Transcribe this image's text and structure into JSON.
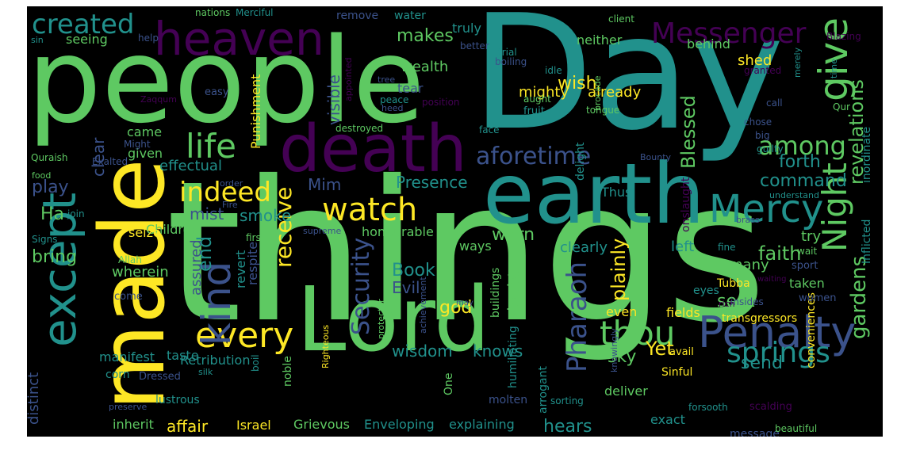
{
  "palette": [
    "#fde725",
    "#5ec962",
    "#21918c",
    "#3b528b",
    "#440154"
  ],
  "words": [
    {
      "text": "things",
      "c": 1
    },
    {
      "text": "Day",
      "c": 2
    },
    {
      "text": "people",
      "c": 1
    },
    {
      "text": "made",
      "c": 0
    },
    {
      "text": "Lord",
      "c": 1
    },
    {
      "text": "earth",
      "c": 2
    },
    {
      "text": "death",
      "c": 4
    },
    {
      "text": "heaven",
      "c": 4
    },
    {
      "text": "except",
      "c": 2
    },
    {
      "text": "Penalty",
      "c": 3
    },
    {
      "text": "give",
      "c": 1
    },
    {
      "text": "Night",
      "c": 1
    },
    {
      "text": "Messenger",
      "c": 4
    },
    {
      "text": "Mercy",
      "c": 2
    },
    {
      "text": "watch",
      "c": 0
    },
    {
      "text": "thou",
      "c": 1
    },
    {
      "text": "every",
      "c": 0
    },
    {
      "text": "kind",
      "c": 3
    },
    {
      "text": "life",
      "c": 1
    },
    {
      "text": "created",
      "c": 2
    },
    {
      "text": "indeed",
      "c": 0
    },
    {
      "text": "springs",
      "c": 2
    },
    {
      "text": "aforetime",
      "c": 3
    },
    {
      "text": "among",
      "c": 1
    },
    {
      "text": "receive",
      "c": 0
    },
    {
      "text": "Security",
      "c": 3
    },
    {
      "text": "Pharaoh",
      "c": 3
    },
    {
      "text": "gardens",
      "c": 1
    },
    {
      "text": "revelations",
      "c": 1
    },
    {
      "text": "Blessed",
      "c": 1
    },
    {
      "text": "plainly",
      "c": 0
    },
    {
      "text": "command",
      "c": 2
    },
    {
      "text": "faith",
      "c": 1
    },
    {
      "text": "Presence",
      "c": 2
    },
    {
      "text": "wisdom",
      "c": 2
    },
    {
      "text": "knows",
      "c": 2
    },
    {
      "text": "visible",
      "c": 3
    },
    {
      "text": "makes",
      "c": 1
    },
    {
      "text": "wish",
      "c": 0
    },
    {
      "text": "end",
      "c": 2
    },
    {
      "text": "bring",
      "c": 1
    },
    {
      "text": "Book",
      "c": 2
    },
    {
      "text": "Evil",
      "c": 3
    },
    {
      "text": "god",
      "c": 0
    },
    {
      "text": "doubt",
      "c": 1
    },
    {
      "text": "smoke",
      "c": 2
    },
    {
      "text": "mist",
      "c": 3
    },
    {
      "text": "forth",
      "c": 2
    },
    {
      "text": "Mim",
      "c": 3
    },
    {
      "text": "Yet",
      "c": 0
    },
    {
      "text": "sky",
      "c": 1
    },
    {
      "text": "sent",
      "c": 1
    },
    {
      "text": "send",
      "c": 2
    },
    {
      "text": "warn",
      "c": 1
    },
    {
      "text": "play",
      "c": 3
    },
    {
      "text": "clear",
      "c": 3
    },
    {
      "text": "distinct",
      "c": 3
    },
    {
      "text": "assured",
      "c": 3
    },
    {
      "text": "affair",
      "c": 0
    },
    {
      "text": "hears",
      "c": 2
    },
    {
      "text": "Ha",
      "c": 1
    },
    {
      "text": "Children",
      "c": 1
    },
    {
      "text": "seize",
      "c": 0
    },
    {
      "text": "wherein",
      "c": 1
    },
    {
      "text": "clearly",
      "c": 2
    },
    {
      "text": "left",
      "c": 2
    },
    {
      "text": "try",
      "c": 1
    },
    {
      "text": "many",
      "c": 1
    },
    {
      "text": "mighty",
      "c": 0
    },
    {
      "text": "already",
      "c": 0
    },
    {
      "text": "wealth",
      "c": 1
    },
    {
      "text": "truly",
      "c": 2
    },
    {
      "text": "neither",
      "c": 1
    },
    {
      "text": "behind",
      "c": 1
    },
    {
      "text": "shed",
      "c": 0
    },
    {
      "text": "seeing",
      "c": 1
    },
    {
      "text": "came",
      "c": 1
    },
    {
      "text": "given",
      "c": 1
    },
    {
      "text": "effectual",
      "c": 2
    },
    {
      "text": "Punishment",
      "c": 0
    },
    {
      "text": "revert",
      "c": 2
    },
    {
      "text": "respite",
      "c": 3
    },
    {
      "text": "honourable",
      "c": 1
    },
    {
      "text": "ways",
      "c": 1
    },
    {
      "text": "Retribution",
      "c": 2
    },
    {
      "text": "Israel",
      "c": 0
    },
    {
      "text": "Grievous",
      "c": 1
    },
    {
      "text": "Enveloping",
      "c": 2
    },
    {
      "text": "explaining",
      "c": 2
    },
    {
      "text": "inherit",
      "c": 1
    },
    {
      "text": "exact",
      "c": 2
    },
    {
      "text": "message",
      "c": 3
    },
    {
      "text": "deliver",
      "c": 1
    },
    {
      "text": "arrogant",
      "c": 2
    },
    {
      "text": "humiliating",
      "c": 2
    },
    {
      "text": "buildings",
      "c": 1
    },
    {
      "text": "even",
      "c": 0
    },
    {
      "text": "fields",
      "c": 0
    },
    {
      "text": "taken",
      "c": 1
    },
    {
      "text": "conveniences",
      "c": 0
    },
    {
      "text": "Inflicted",
      "c": 2
    },
    {
      "text": "inordinate",
      "c": 2
    },
    {
      "text": "tear",
      "c": 3
    },
    {
      "text": "delight",
      "c": 2
    },
    {
      "text": "onslaught",
      "c": 4
    },
    {
      "text": "Thus",
      "c": 2
    },
    {
      "text": "Tubba",
      "c": 0
    },
    {
      "text": "transgressors",
      "c": 0
    },
    {
      "text": "noble",
      "c": 1
    },
    {
      "text": "One",
      "c": 1
    },
    {
      "text": "Sinful",
      "c": 0
    },
    {
      "text": "avail",
      "c": 0
    },
    {
      "text": "women",
      "c": 3
    },
    {
      "text": "eyes",
      "c": 2
    },
    {
      "text": "insides",
      "c": 3
    },
    {
      "text": "fine",
      "c": 2
    },
    {
      "text": "wait",
      "c": 1
    },
    {
      "text": "sport",
      "c": 3
    },
    {
      "text": "Righteous",
      "c": 0
    },
    {
      "text": "knowingly",
      "c": 3
    },
    {
      "text": "protector",
      "c": 1
    },
    {
      "text": "achievement",
      "c": 3
    },
    {
      "text": "manifest",
      "c": 2
    },
    {
      "text": "taste",
      "c": 2
    },
    {
      "text": "corn",
      "c": 2
    },
    {
      "text": "come",
      "c": 3
    },
    {
      "text": "preserve",
      "c": 3
    },
    {
      "text": "Dressed",
      "c": 3
    },
    {
      "text": "lustrous",
      "c": 2
    },
    {
      "text": "boil",
      "c": 2
    },
    {
      "text": "molten",
      "c": 3
    },
    {
      "text": "sorting",
      "c": 2
    },
    {
      "text": "forsooth",
      "c": 2
    },
    {
      "text": "scalding",
      "c": 4
    },
    {
      "text": "beautiful",
      "c": 1
    },
    {
      "text": "remove",
      "c": 3
    },
    {
      "text": "water",
      "c": 2
    },
    {
      "text": "client",
      "c": 1
    },
    {
      "text": "Blazing",
      "c": 4
    },
    {
      "text": "granted",
      "c": 4
    },
    {
      "text": "merely",
      "c": 2
    },
    {
      "text": "time",
      "c": 2
    },
    {
      "text": "call",
      "c": 3
    },
    {
      "text": "Qur",
      "c": 1
    },
    {
      "text": "chose",
      "c": 3
    },
    {
      "text": "big",
      "c": 3
    },
    {
      "text": "guilty",
      "c": 2
    },
    {
      "text": "Bounty",
      "c": 3
    },
    {
      "text": "understand",
      "c": 2
    },
    {
      "text": "brass",
      "c": 3
    },
    {
      "text": "rich",
      "c": 4
    },
    {
      "text": "waiting",
      "c": 4
    },
    {
      "text": "supreme",
      "c": 3
    },
    {
      "text": "first",
      "c": 1
    },
    {
      "text": "Fire",
      "c": 3
    },
    {
      "text": "order",
      "c": 3
    },
    {
      "text": "silk",
      "c": 2
    },
    {
      "text": "nations",
      "c": 1
    },
    {
      "text": "Merciful",
      "c": 2
    },
    {
      "text": "sin",
      "c": 2
    },
    {
      "text": "help",
      "c": 3
    },
    {
      "text": "better",
      "c": 3
    },
    {
      "text": "trial",
      "c": 2
    },
    {
      "text": "boiling",
      "c": 3
    },
    {
      "text": "brocade",
      "c": 1
    },
    {
      "text": "idle",
      "c": 2
    },
    {
      "text": "tree",
      "c": 3
    },
    {
      "text": "easy",
      "c": 3
    },
    {
      "text": "Zaqqum",
      "c": 4
    },
    {
      "text": "appointed",
      "c": 4
    },
    {
      "text": "peace",
      "c": 2
    },
    {
      "text": "position",
      "c": 4
    },
    {
      "text": "heed",
      "c": 3
    },
    {
      "text": "aught",
      "c": 1
    },
    {
      "text": "fruit",
      "c": 2
    },
    {
      "text": "tongue",
      "c": 1
    },
    {
      "text": "face",
      "c": 2
    },
    {
      "text": "destroyed",
      "c": 1
    },
    {
      "text": "Quraish",
      "c": 1
    },
    {
      "text": "Might",
      "c": 3
    },
    {
      "text": "Exalted",
      "c": 3
    },
    {
      "text": "food",
      "c": 1
    },
    {
      "text": "join",
      "c": 2
    },
    {
      "text": "Signs",
      "c": 2
    },
    {
      "text": "Allah",
      "c": 1
    },
    {
      "text": "may",
      "c": 3
    }
  ]
}
